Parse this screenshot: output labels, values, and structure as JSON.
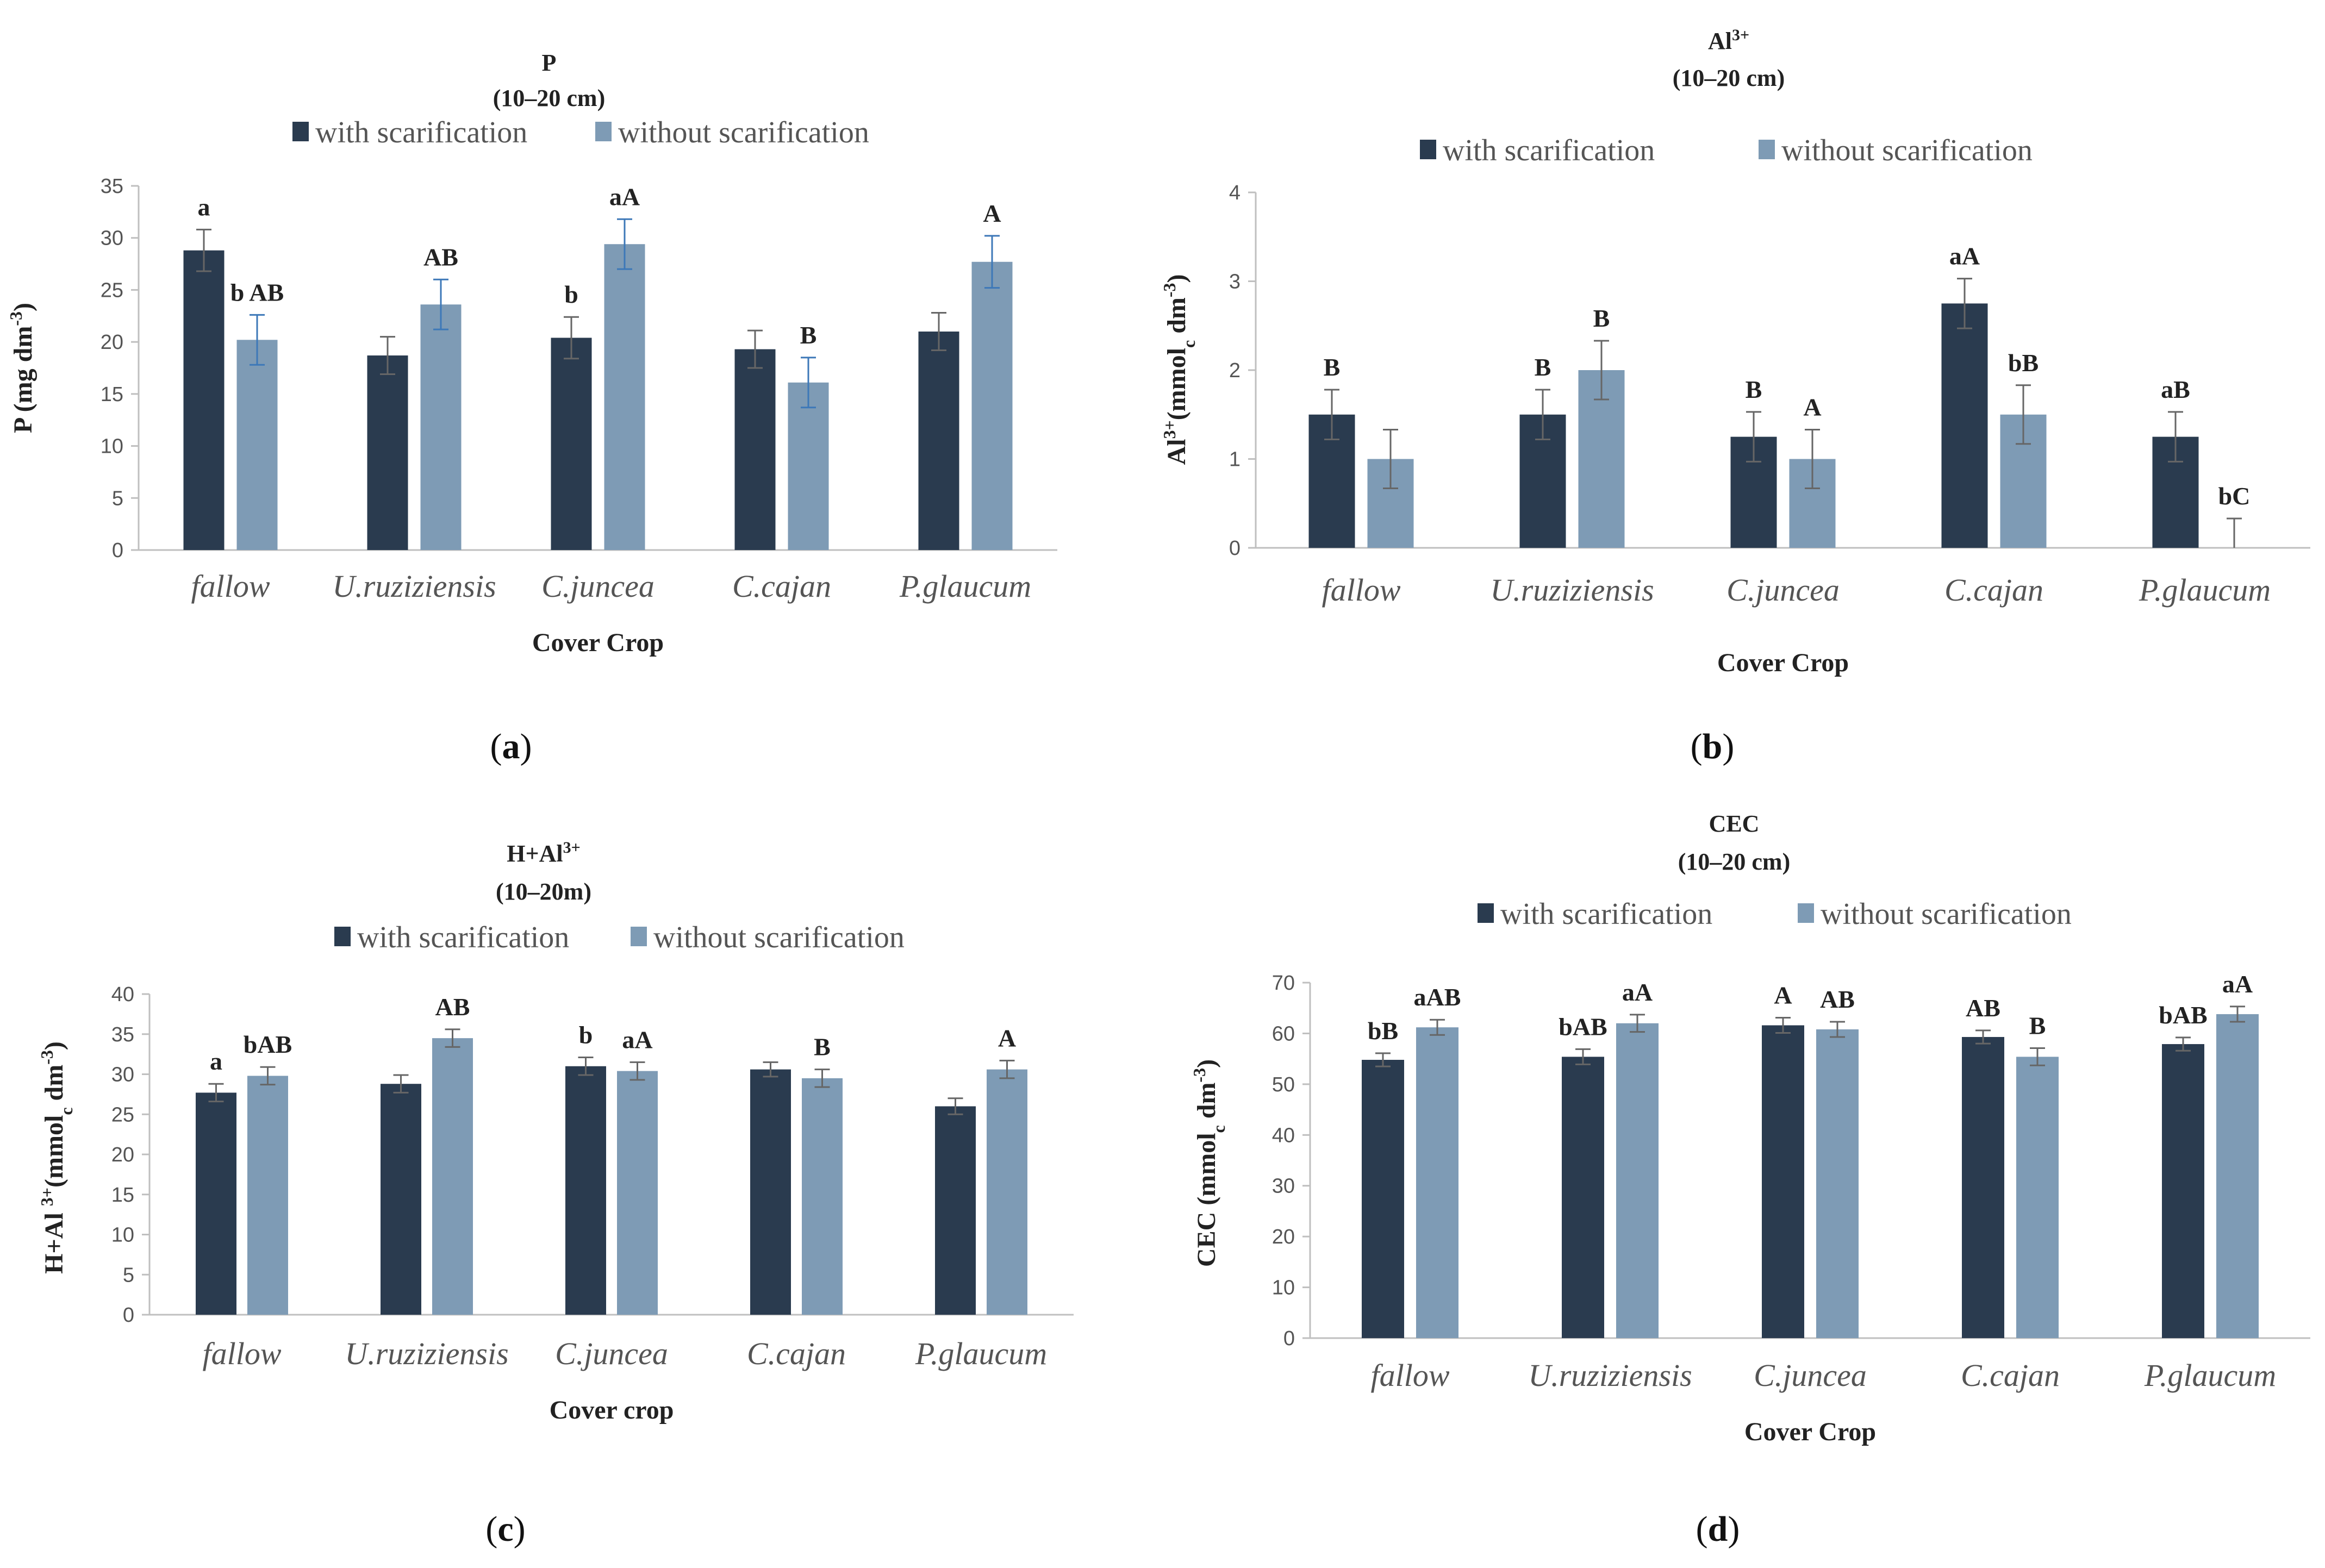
{
  "colors": {
    "with": "#2a3b4f",
    "without": "#7e9bb5",
    "axis": "#bfbfbf",
    "err_dark": "#666666",
    "err_blue": "#3d78b8"
  },
  "legend": {
    "with": "with scarification",
    "without": "without scarification"
  },
  "chart_data": [
    {
      "type": "bar",
      "panel": "(a)",
      "panel_letter": "a",
      "title_main": "P",
      "title_sup": "",
      "title_depth": "(10–20 cm)",
      "ylabel": "P  (mg dm-3)",
      "ylabel_parts": [
        "P  (mg dm",
        "-3",
        ")"
      ],
      "xlabel": "Cover  Crop",
      "ylim": [
        0,
        35
      ],
      "yticks": [
        0,
        5,
        10,
        15,
        20,
        25,
        30,
        35
      ],
      "categories": [
        "fallow",
        "U.ruziziensis",
        "C.juncea",
        "C.cajan",
        "P.glaucum"
      ],
      "series": [
        {
          "name": "with scarification",
          "values": [
            28.8,
            18.7,
            20.4,
            19.3,
            21.0
          ],
          "errors": [
            2.0,
            1.8,
            2.0,
            1.8,
            1.8
          ],
          "labels": [
            "a",
            "",
            "b",
            "",
            ""
          ]
        },
        {
          "name": "without scarification",
          "values": [
            20.2,
            23.6,
            29.4,
            16.1,
            27.7
          ],
          "errors": [
            2.4,
            2.4,
            2.4,
            2.4,
            2.5
          ],
          "labels": [
            "b AB",
            "AB",
            "aA",
            "B",
            "A"
          ]
        }
      ]
    },
    {
      "type": "bar",
      "panel": "(b)",
      "panel_letter": "b",
      "title_main": "Al",
      "title_sup": "3+",
      "title_depth": "(10–20 cm)",
      "ylabel": "Al3+(mmolc dm-3)",
      "ylabel_parts": [
        "Al",
        "3+",
        "(mmol",
        "c",
        " dm",
        "-3",
        ")"
      ],
      "xlabel": "Cover  Crop",
      "ylim": [
        0,
        4
      ],
      "yticks": [
        0,
        1,
        2,
        3,
        4
      ],
      "categories": [
        "fallow",
        "U.ruziziensis",
        "C.juncea",
        "C.cajan",
        "P.glaucum"
      ],
      "series": [
        {
          "name": "with scarification",
          "values": [
            1.5,
            1.5,
            1.25,
            2.75,
            1.25
          ],
          "errors": [
            0.28,
            0.28,
            0.28,
            0.28,
            0.28
          ],
          "labels": [
            "B",
            "B",
            "B",
            "aA",
            "aB"
          ]
        },
        {
          "name": "without scarification",
          "values": [
            1.0,
            2.0,
            1.0,
            1.5,
            0.0
          ],
          "errors": [
            0.33,
            0.33,
            0.33,
            0.33,
            0.33
          ],
          "labels": [
            "",
            "B",
            "A",
            "bB",
            "bC"
          ]
        }
      ]
    },
    {
      "type": "bar",
      "panel": "(c)",
      "panel_letter": "c",
      "title_main": "H+Al",
      "title_sup": "3+",
      "title_depth": "(10–20m)",
      "ylabel": "H+Al 3+(mmolc dm-3)",
      "ylabel_parts": [
        "H+Al ",
        "3+",
        "(mmol",
        "c",
        " dm",
        "-3",
        ")"
      ],
      "xlabel": "Cover  crop",
      "ylim": [
        0,
        40
      ],
      "yticks": [
        0,
        5,
        10,
        15,
        20,
        25,
        30,
        35,
        40
      ],
      "categories": [
        "fallow",
        "U.ruziziensis",
        "C.juncea",
        "C.cajan",
        "P.glaucum"
      ],
      "series": [
        {
          "name": "with scarification",
          "values": [
            27.7,
            28.8,
            31.0,
            30.6,
            26.0
          ],
          "errors": [
            1.1,
            1.1,
            1.1,
            0.9,
            1.0
          ],
          "labels": [
            "a",
            "",
            "b",
            "",
            ""
          ]
        },
        {
          "name": "without scarification",
          "values": [
            29.8,
            34.5,
            30.4,
            29.5,
            30.6
          ],
          "errors": [
            1.1,
            1.1,
            1.1,
            1.1,
            1.1
          ],
          "labels": [
            "bAB",
            "AB",
            "aA",
            "B",
            "A"
          ]
        }
      ]
    },
    {
      "type": "bar",
      "panel": "(d)",
      "panel_letter": "d",
      "title_main": "CEC",
      "title_sup": "",
      "title_depth": "(10–20 cm)",
      "ylabel": "CEC  (mmolc  dm-3)",
      "ylabel_parts": [
        "CEC  (mmol",
        "c",
        "  dm",
        "-3",
        ")"
      ],
      "xlabel": "Cover  Crop",
      "ylim": [
        0,
        70
      ],
      "yticks": [
        0,
        10,
        20,
        30,
        40,
        50,
        60,
        70
      ],
      "categories": [
        "fallow",
        "U.ruziziensis",
        "C.juncea",
        "C.cajan",
        "P.glaucum"
      ],
      "series": [
        {
          "name": "with scarification",
          "values": [
            54.8,
            55.4,
            61.6,
            59.3,
            57.9
          ],
          "errors": [
            1.3,
            1.5,
            1.5,
            1.3,
            1.3
          ],
          "labels": [
            "bB",
            "bAB",
            "A",
            "AB",
            "bAB"
          ]
        },
        {
          "name": "without scarification",
          "values": [
            61.2,
            62.0,
            60.8,
            55.4,
            63.8
          ],
          "errors": [
            1.5,
            1.7,
            1.5,
            1.7,
            1.5
          ],
          "labels": [
            "aAB",
            "aA",
            "AB",
            "B",
            "aA"
          ]
        }
      ]
    }
  ]
}
